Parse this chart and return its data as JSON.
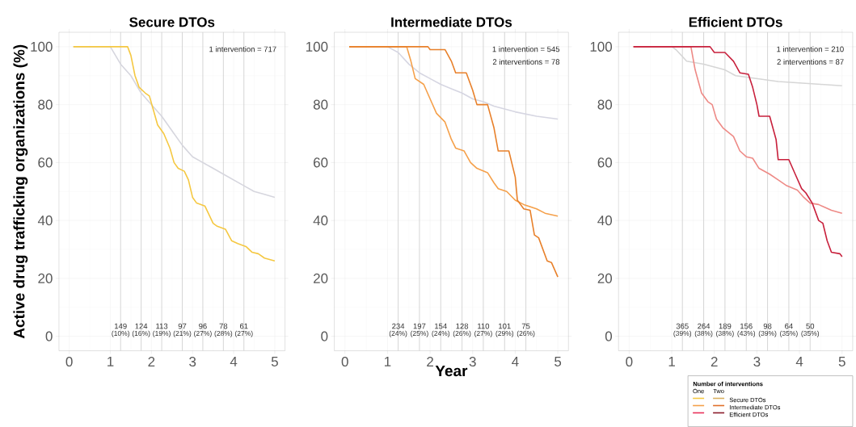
{
  "chart_data": [
    {
      "type": "line",
      "title": "Secure DTOs",
      "ylabel": "Active drug trafficking organizations (%)",
      "xlim": [
        -0.25,
        5.25
      ],
      "ylim": [
        -5,
        105
      ],
      "xticks": [
        0,
        1,
        2,
        3,
        4,
        5
      ],
      "yticks": [
        0,
        20,
        40,
        60,
        80,
        100
      ],
      "grid": true,
      "series": [
        {
          "color": "#d6d6de",
          "x": [
            0.1,
            1.0,
            1.25,
            1.5,
            1.75,
            2.0,
            2.25,
            2.5,
            2.75,
            3.0,
            3.25,
            3.5,
            3.75,
            4.0,
            4.25,
            4.5,
            4.75,
            5.0
          ],
          "values": [
            100,
            100,
            94,
            90,
            84,
            80,
            76,
            71,
            66,
            62,
            60,
            58,
            56,
            54,
            52,
            50,
            49,
            48
          ]
        },
        {
          "color": "#f5c842",
          "x": [
            0.1,
            1.42,
            1.5,
            1.6,
            1.7,
            1.85,
            1.95,
            2.05,
            2.15,
            2.3,
            2.45,
            2.55,
            2.65,
            2.8,
            2.9,
            3.0,
            3.1,
            3.3,
            3.4,
            3.5,
            3.6,
            3.8,
            3.95,
            4.1,
            4.3,
            4.45,
            4.6,
            4.75,
            5.0
          ],
          "values": [
            100,
            100,
            97,
            90,
            86,
            84,
            83,
            78,
            73,
            70,
            65,
            60,
            58,
            57,
            54,
            48,
            46,
            45,
            42,
            39,
            38,
            37,
            33,
            32,
            31,
            29,
            28.5,
            27,
            26
          ]
        }
      ],
      "ref_lines": [
        {
          "axis": "x",
          "value": 1.25,
          "color": "#cccccc"
        },
        {
          "axis": "x",
          "value": 1.75,
          "color": "#cccccc"
        },
        {
          "axis": "x",
          "value": 2.25,
          "color": "#cccccc"
        },
        {
          "axis": "x",
          "value": 2.75,
          "color": "#cccccc"
        },
        {
          "axis": "x",
          "value": 3.25,
          "color": "#cccccc"
        },
        {
          "axis": "x",
          "value": 3.75,
          "color": "#cccccc"
        },
        {
          "axis": "x",
          "value": 4.25,
          "color": "#cccccc"
        }
      ],
      "annotations": [
        "1 intervention = 717",
        {
          "text": "149",
          "x": 1.25,
          "y": 3.5
        },
        {
          "text": "(10%)",
          "x": 1.25,
          "y": 0.8
        },
        {
          "text": "124",
          "x": 1.75,
          "y": 3.5
        },
        {
          "text": "(16%)",
          "x": 1.75,
          "y": 0.8
        },
        {
          "text": "113",
          "x": 2.25,
          "y": 3.5
        },
        {
          "text": "(19%)",
          "x": 2.25,
          "y": 0.8
        },
        {
          "text": "97",
          "x": 2.75,
          "y": 3.5
        },
        {
          "text": "(21%)",
          "x": 2.75,
          "y": 0.8
        },
        {
          "text": "96",
          "x": 3.25,
          "y": 3.5
        },
        {
          "text": "(27%)",
          "x": 3.25,
          "y": 0.8
        },
        {
          "text": "78",
          "x": 3.75,
          "y": 3.5
        },
        {
          "text": "(28%)",
          "x": 3.75,
          "y": 0.8
        },
        {
          "text": "61",
          "x": 4.25,
          "y": 3.5
        },
        {
          "text": "(27%)",
          "x": 4.25,
          "y": 0.8
        }
      ]
    },
    {
      "type": "line",
      "title": "Intermediate DTOs",
      "xlabel": "Year",
      "xlim": [
        -0.25,
        5.25
      ],
      "ylim": [
        -5,
        105
      ],
      "xticks": [
        0,
        1,
        2,
        3,
        4,
        5
      ],
      "yticks": [
        0,
        20,
        40,
        60,
        80,
        100
      ],
      "grid": true,
      "series": [
        {
          "color": "#d6d6e2",
          "x": [
            0.1,
            1.0,
            1.25,
            1.5,
            1.75,
            2.0,
            2.25,
            2.5,
            2.75,
            3.0,
            3.25,
            3.5,
            3.75,
            4.0,
            4.5,
            5.0
          ],
          "values": [
            100,
            100,
            98,
            94,
            91,
            89,
            87,
            85.5,
            84,
            82,
            81,
            79.5,
            78.5,
            77.5,
            76,
            75
          ]
        },
        {
          "color": "#f5a04a",
          "x": [
            0.1,
            1.45,
            1.55,
            1.65,
            1.85,
            2.0,
            2.15,
            2.35,
            2.5,
            2.6,
            2.8,
            2.95,
            3.1,
            3.35,
            3.5,
            3.6,
            3.8,
            4.0,
            4.2,
            4.5,
            4.7,
            5.0
          ],
          "values": [
            100,
            100,
            95,
            89,
            87,
            82,
            77,
            74,
            68,
            65,
            64,
            60,
            58,
            56.5,
            53,
            51,
            50,
            47,
            45.5,
            44,
            42.5,
            41.5
          ]
        },
        {
          "color": "#e8802a",
          "x": [
            0.1,
            1.95,
            2.0,
            2.35,
            2.5,
            2.6,
            2.85,
            3.0,
            3.1,
            3.35,
            3.5,
            3.6,
            3.85,
            4.0,
            4.05,
            4.2,
            4.35,
            4.45,
            4.55,
            4.75,
            4.85,
            5.0
          ],
          "values": [
            100,
            100,
            99,
            99,
            95,
            91,
            91,
            85,
            80,
            80,
            72,
            64,
            64,
            55,
            47,
            44,
            43.5,
            35,
            34,
            26,
            25.5,
            20.5
          ]
        }
      ],
      "ref_lines": [
        {
          "axis": "x",
          "value": 1.25,
          "color": "#cccccc"
        },
        {
          "axis": "x",
          "value": 1.75,
          "color": "#cccccc"
        },
        {
          "axis": "x",
          "value": 2.25,
          "color": "#cccccc"
        },
        {
          "axis": "x",
          "value": 2.75,
          "color": "#cccccc"
        },
        {
          "axis": "x",
          "value": 3.25,
          "color": "#cccccc"
        },
        {
          "axis": "x",
          "value": 3.75,
          "color": "#cccccc"
        },
        {
          "axis": "x",
          "value": 4.25,
          "color": "#cccccc"
        }
      ],
      "annotations": [
        "1 intervention = 545",
        "2 interventions = 78",
        {
          "text": "234",
          "x": 1.25,
          "y": 3.5
        },
        {
          "text": "(24%)",
          "x": 1.25,
          "y": 0.8
        },
        {
          "text": "197",
          "x": 1.75,
          "y": 3.5
        },
        {
          "text": "(25%)",
          "x": 1.75,
          "y": 0.8
        },
        {
          "text": "154",
          "x": 2.25,
          "y": 3.5
        },
        {
          "text": "(24%)",
          "x": 2.25,
          "y": 0.8
        },
        {
          "text": "128",
          "x": 2.75,
          "y": 3.5
        },
        {
          "text": "(26%)",
          "x": 2.75,
          "y": 0.8
        },
        {
          "text": "110",
          "x": 3.25,
          "y": 3.5
        },
        {
          "text": "(27%)",
          "x": 3.25,
          "y": 0.8
        },
        {
          "text": "101",
          "x": 3.75,
          "y": 3.5
        },
        {
          "text": "(29%)",
          "x": 3.75,
          "y": 0.8
        },
        {
          "text": "75",
          "x": 4.25,
          "y": 3.5
        },
        {
          "text": "(26%)",
          "x": 4.25,
          "y": 0.8
        }
      ]
    },
    {
      "type": "line",
      "title": "Efficient DTOs",
      "xlim": [
        -0.25,
        5.25
      ],
      "ylim": [
        -5,
        105
      ],
      "xticks": [
        0,
        1,
        2,
        3,
        4,
        5
      ],
      "yticks": [
        0,
        20,
        40,
        60,
        80,
        100
      ],
      "grid": true,
      "series": [
        {
          "color": "#d6d6d6",
          "x": [
            0.1,
            1.0,
            1.1,
            1.35,
            1.75,
            2.25,
            2.5,
            3.0,
            3.5,
            4.0,
            4.5,
            5.0
          ],
          "values": [
            100,
            100,
            99,
            95,
            94,
            92,
            90,
            89,
            88,
            87.5,
            87,
            86.5
          ]
        },
        {
          "color": "#ee8a86",
          "x": [
            0.1,
            1.45,
            1.55,
            1.7,
            1.85,
            1.95,
            2.05,
            2.2,
            2.45,
            2.6,
            2.75,
            2.9,
            3.05,
            3.3,
            3.5,
            3.7,
            3.95,
            4.1,
            4.25,
            4.45,
            4.75,
            5.0
          ],
          "values": [
            100,
            100,
            92,
            84,
            81,
            80,
            75,
            72,
            69,
            64,
            62,
            61.5,
            58,
            56,
            54,
            52,
            50.5,
            48,
            46,
            45.5,
            43.5,
            42.5
          ]
        },
        {
          "color": "#c8203c",
          "x": [
            0.1,
            1.9,
            2.0,
            2.25,
            2.45,
            2.6,
            2.8,
            2.9,
            3.0,
            3.05,
            3.3,
            3.45,
            3.5,
            3.75,
            3.9,
            4.05,
            4.15,
            4.3,
            4.45,
            4.55,
            4.65,
            4.75,
            4.95,
            5.0
          ],
          "values": [
            100,
            100,
            98,
            98,
            95,
            91,
            90.5,
            86,
            80,
            76,
            76,
            68,
            61,
            61,
            56,
            51,
            49.5,
            46,
            40,
            39,
            33,
            29,
            28.5,
            27.5
          ]
        }
      ],
      "ref_lines": [
        {
          "axis": "x",
          "value": 1.25,
          "color": "#cccccc"
        },
        {
          "axis": "x",
          "value": 1.75,
          "color": "#cccccc"
        },
        {
          "axis": "x",
          "value": 2.25,
          "color": "#cccccc"
        },
        {
          "axis": "x",
          "value": 2.75,
          "color": "#cccccc"
        },
        {
          "axis": "x",
          "value": 3.25,
          "color": "#cccccc"
        },
        {
          "axis": "x",
          "value": 3.75,
          "color": "#cccccc"
        },
        {
          "axis": "x",
          "value": 4.25,
          "color": "#cccccc"
        }
      ],
      "annotations": [
        "1 intervention = 210",
        "2 interventions = 87",
        {
          "text": "365",
          "x": 1.25,
          "y": 3.5
        },
        {
          "text": "(39%)",
          "x": 1.25,
          "y": 0.8
        },
        {
          "text": "264",
          "x": 1.75,
          "y": 3.5
        },
        {
          "text": "(38%)",
          "x": 1.75,
          "y": 0.8
        },
        {
          "text": "189",
          "x": 2.25,
          "y": 3.5
        },
        {
          "text": "(38%)",
          "x": 2.25,
          "y": 0.8
        },
        {
          "text": "156",
          "x": 2.75,
          "y": 3.5
        },
        {
          "text": "(43%)",
          "x": 2.75,
          "y": 0.8
        },
        {
          "text": "98",
          "x": 3.25,
          "y": 3.5
        },
        {
          "text": "(39%)",
          "x": 3.25,
          "y": 0.8
        },
        {
          "text": "64",
          "x": 3.75,
          "y": 3.5
        },
        {
          "text": "(35%)",
          "x": 3.75,
          "y": 0.8
        },
        {
          "text": "50",
          "x": 4.25,
          "y": 3.5
        },
        {
          "text": "(35%)",
          "x": 4.25,
          "y": 0.8
        }
      ]
    },
    {
      "type": "other",
      "legend_title": "Number of interventions",
      "annotations": [
        "One",
        "Two",
        "Secure DTOs",
        "Intermediate DTOs",
        "Efficient DTOs"
      ],
      "series": [
        {
          "color": "#f5c842"
        },
        {
          "color": "#d8b060"
        },
        {
          "color": "#f5a04a"
        },
        {
          "color": "#e0702a"
        },
        {
          "color": "#e8305a"
        },
        {
          "color": "#8b1a2a"
        }
      ]
    }
  ]
}
